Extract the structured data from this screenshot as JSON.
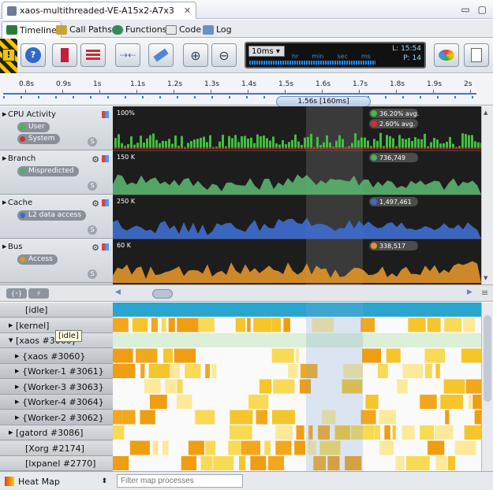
{
  "window": {
    "title": "xaos-multithreaded-VE-A15x2-A7x3",
    "close": "✕",
    "minimize": "▭",
    "maximize": "▢"
  },
  "tabs": [
    "Timeline",
    "Call Paths",
    "Functions",
    "Code",
    "Log"
  ],
  "toolbar": {
    "zoom": "10ms ▾",
    "lcd_scale": [
      "hr",
      "min",
      "sec",
      "ms"
    ],
    "lcd_l": "L: 15:54",
    "lcd_p": "P: 14"
  },
  "ruler": {
    "ticks": [
      "0.8s",
      "0.9s",
      "1s",
      "1.1s",
      "1.2s",
      "1.3s",
      "1.4s",
      "1.5s",
      "1.6s",
      "1.7s",
      "1.8s",
      "1.9s",
      "2s"
    ],
    "selection": "1.56s [160ms]"
  },
  "counters": [
    {
      "name": "CPU Activity",
      "series": [
        {
          "label": "User",
          "color": "#3fbf3f"
        },
        {
          "label": "System",
          "color": "#d03030"
        }
      ],
      "legend": [
        "36.20% avg.",
        "2.60% avg."
      ],
      "scale": "100%",
      "color": "#3fbf3f"
    },
    {
      "name": "Branch",
      "series": [
        {
          "label": "Mispredicted",
          "color": "#4caf6a"
        }
      ],
      "legend": [
        "736,749"
      ],
      "scale": "150 K",
      "color": "#5ab56e"
    },
    {
      "name": "Cache",
      "series": [
        {
          "label": "L2 data access",
          "color": "#3e6cc9"
        }
      ],
      "legend": [
        "1,497,461"
      ],
      "scale": "250 K",
      "color": "#3f6fd1"
    },
    {
      "name": "Bus",
      "series": [
        {
          "label": "Access",
          "color": "#e0962a"
        }
      ],
      "legend": [
        "338,517"
      ],
      "scale": "60 K",
      "color": "#e3952a"
    }
  ],
  "processes": [
    {
      "label": "[idle]",
      "indent": 1,
      "expander": ""
    },
    {
      "label": "[kernel]",
      "indent": 0,
      "expander": "▶"
    },
    {
      "label": "[xaos #3060]",
      "indent": 0,
      "expander": "▼"
    },
    {
      "label": "{xaos #3060}",
      "indent": 1,
      "expander": "▶"
    },
    {
      "label": "{Worker-1 #3061}",
      "indent": 1,
      "expander": "▶"
    },
    {
      "label": "{Worker-3 #3063}",
      "indent": 1,
      "expander": "▶"
    },
    {
      "label": "{Worker-4 #3064}",
      "indent": 1,
      "expander": "▶"
    },
    {
      "label": "{Worker-2 #3062}",
      "indent": 1,
      "expander": "▶"
    },
    {
      "label": "[gatord #3086]",
      "indent": 0,
      "expander": "▶"
    },
    {
      "label": "[Xorg #2174]",
      "indent": 1,
      "expander": ""
    },
    {
      "label": "[lxpanel #2770]",
      "indent": 1,
      "expander": ""
    }
  ],
  "tooltip": "[idle]",
  "bottom": {
    "mode": "Heat Map",
    "filter_placeholder": "Filter map processes"
  },
  "icons": {
    "s_button": "S",
    "idle_marker": "{⁃}"
  }
}
